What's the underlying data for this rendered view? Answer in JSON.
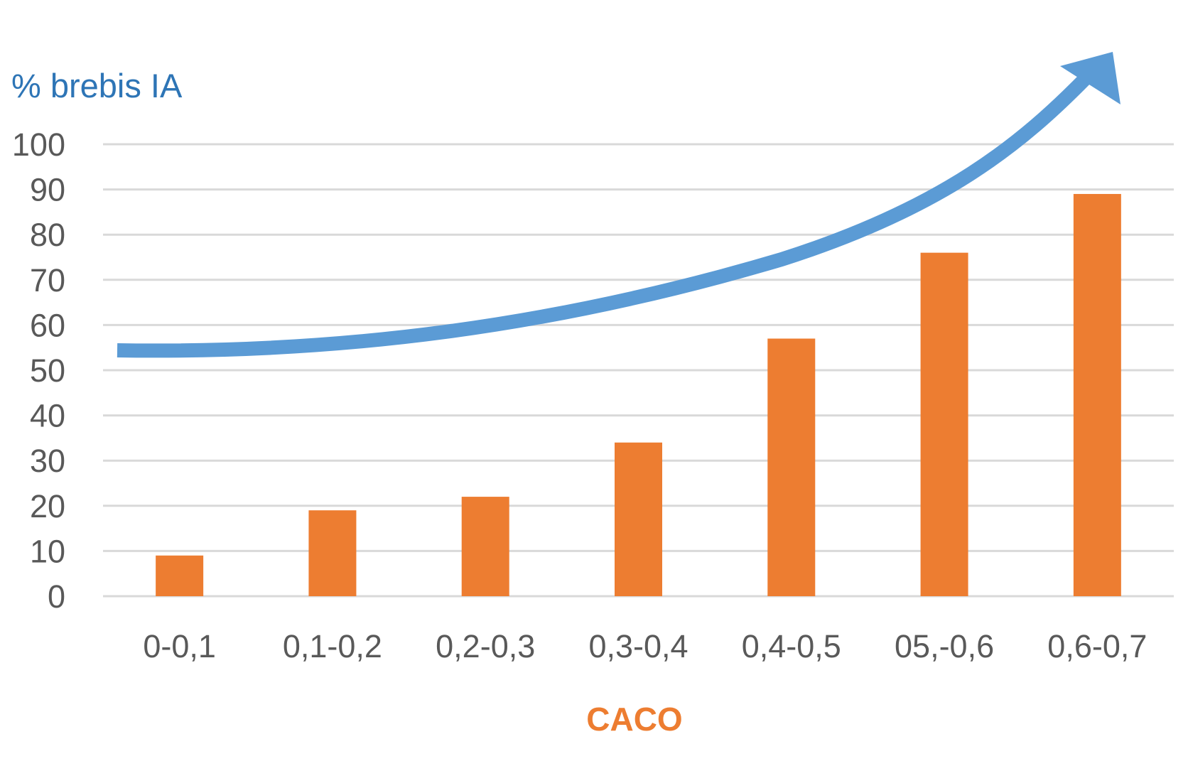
{
  "chart_data": {
    "type": "bar",
    "title": "",
    "ylabel": "% brebis IA",
    "xlabel": "CACO",
    "categories": [
      "0-0,1",
      "0,1-0,2",
      "0,2-0,3",
      "0,3-0,4",
      "0,4-0,5",
      "05,-0,6",
      "0,6-0,7"
    ],
    "series": [
      {
        "values": [
          9,
          19,
          22,
          34,
          57,
          76,
          89
        ]
      }
    ],
    "ylim": [
      0,
      100
    ],
    "yticks": [
      "0",
      "10",
      "20",
      "30",
      "40",
      "50",
      "60",
      "70",
      "80",
      "90",
      "100"
    ],
    "grid": true,
    "legend": "none",
    "annotations": [
      {
        "type": "trend-arrow",
        "shape": "curved-upward"
      }
    ]
  },
  "colors": {
    "bar": "#ED7D31",
    "arrow": "#5B9BD5",
    "ylabel": "#2E75B6",
    "xlabel": "#ED7D31",
    "tick_text": "#595959",
    "grid": "#D9D9D9"
  }
}
